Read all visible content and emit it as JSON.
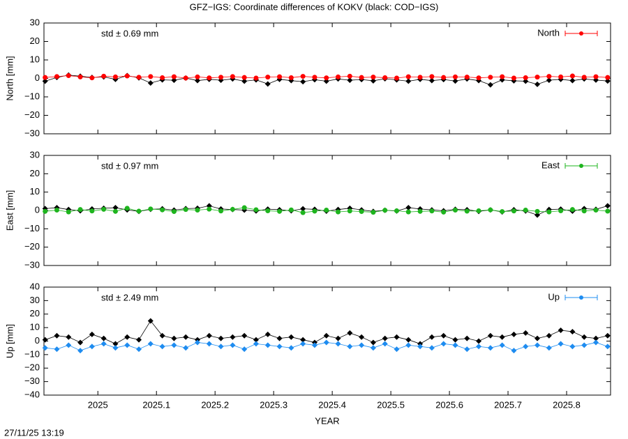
{
  "title": "GFZ−IGS: Coordinate differences of KOKV (black: COD−IGS)",
  "timestamp": "27/11/25 13:19",
  "chart_data": [
    {
      "type": "line",
      "ylabel": "North [mm]",
      "annotation": "std ± 0.69 mm",
      "annotation_color": "#ff0000",
      "xlim": [
        2024.908,
        2025.875
      ],
      "xticks": [
        2025,
        2025.1,
        2025.2,
        2025.3,
        2025.4,
        2025.5,
        2025.6,
        2025.7,
        2025.8
      ],
      "ylim": [
        -30,
        30
      ],
      "yticks": [
        {
          "value": -30,
          "label": "−30"
        },
        {
          "value": -20,
          "label": "−20"
        },
        {
          "value": -10,
          "label": "−10"
        },
        0,
        10,
        20,
        30
      ],
      "x": [
        2024.91,
        2024.93,
        2024.95,
        2024.97,
        2024.99,
        2025.01,
        2025.03,
        2025.05,
        2025.07,
        2025.09,
        2025.11,
        2025.13,
        2025.15,
        2025.17,
        2025.19,
        2025.21,
        2025.23,
        2025.25,
        2025.27,
        2025.29,
        2025.31,
        2025.33,
        2025.35,
        2025.37,
        2025.39,
        2025.41,
        2025.43,
        2025.45,
        2025.47,
        2025.49,
        2025.51,
        2025.53,
        2025.55,
        2025.57,
        2025.59,
        2025.61,
        2025.63,
        2025.65,
        2025.67,
        2025.69,
        2025.71,
        2025.73,
        2025.75,
        2025.77,
        2025.79,
        2025.81,
        2025.83,
        2025.85,
        2025.87
      ],
      "series": [
        {
          "color": "#000000",
          "marker": "diamond",
          "values": [
            -1.5,
            0.5,
            1.8,
            1.2,
            0.5,
            0.8,
            -0.5,
            1.5,
            0.3,
            -2.5,
            -0.8,
            -1,
            0.2,
            -1.2,
            -0.5,
            -1,
            -0.3,
            -1.5,
            -0.8,
            -3,
            -0.5,
            -1.2,
            -1.8,
            -0.7,
            -1.5,
            -0.3,
            -1,
            -0.6,
            -1.3,
            -0.2,
            -0.8,
            -1.5,
            -0.5,
            -1.2,
            -0.6,
            -1.4,
            -0.3,
            -1.2,
            -3.5,
            -0.8,
            -1.3,
            -1.5,
            -3.2,
            -1,
            -0.5,
            -1.2,
            -0.3,
            -0.9,
            -1.4
          ]
        },
        {
          "name": "North",
          "color": "#ff0000",
          "marker": "circle",
          "values": [
            0.5,
            1,
            1.5,
            0.8,
            0.3,
            1.2,
            0.8,
            1.3,
            0.6,
            1,
            0.4,
            0.9,
            0.2,
            0.8,
            0.3,
            0.6,
            1,
            0.5,
            0.2,
            0.7,
            0.9,
            0.4,
            1.1,
            0.6,
            0.3,
            0.8,
            1.2,
            0.5,
            0.7,
            0.4,
            0.2,
            0.9,
            0.6,
            1,
            0.5,
            0.8,
            0.7,
            0.3,
            0.6,
            0.9,
            0.2,
            0.4,
            0.7,
            1.1,
            0.8,
            1.3,
            0.6,
            0.9,
            0.5
          ]
        }
      ]
    },
    {
      "type": "line",
      "ylabel": "East [mm]",
      "annotation": "std ± 0.97 mm",
      "annotation_color": "#1eb41e",
      "xlim": [
        2024.908,
        2025.875
      ],
      "xticks": [
        2025,
        2025.1,
        2025.2,
        2025.3,
        2025.4,
        2025.5,
        2025.6,
        2025.7,
        2025.8
      ],
      "ylim": [
        -30,
        30
      ],
      "yticks": [
        {
          "value": -30,
          "label": "−30"
        },
        {
          "value": -20,
          "label": "−20"
        },
        {
          "value": -10,
          "label": "−10"
        },
        0,
        10,
        20,
        30
      ],
      "x": [
        2024.91,
        2024.93,
        2024.95,
        2024.97,
        2024.99,
        2025.01,
        2025.03,
        2025.05,
        2025.07,
        2025.09,
        2025.11,
        2025.13,
        2025.15,
        2025.17,
        2025.19,
        2025.21,
        2025.23,
        2025.25,
        2025.27,
        2025.29,
        2025.31,
        2025.33,
        2025.35,
        2025.37,
        2025.39,
        2025.41,
        2025.43,
        2025.45,
        2025.47,
        2025.49,
        2025.51,
        2025.53,
        2025.55,
        2025.57,
        2025.59,
        2025.61,
        2025.63,
        2025.65,
        2025.67,
        2025.69,
        2025.71,
        2025.73,
        2025.75,
        2025.77,
        2025.79,
        2025.81,
        2025.83,
        2025.85,
        2025.87
      ],
      "series": [
        {
          "color": "#000000",
          "marker": "diamond",
          "values": [
            1,
            1.5,
            0.5,
            -0.2,
            0.8,
            1.2,
            1.5,
            0.3,
            -0.5,
            0.6,
            0.9,
            0.2,
            1,
            1.2,
            2.5,
            0.8,
            0.5,
            0.2,
            -0.3,
            0.7,
            0.4,
            -0.2,
            0.9,
            0.6,
            -0.4,
            0.5,
            1.2,
            0.3,
            -0.5,
            0.1,
            -0.3,
            1.5,
            0.8,
            0.3,
            -0.2,
            0.6,
            0.4,
            -0.5,
            0.3,
            -0.8,
            0.4,
            -0.3,
            -2.5,
            0.5,
            0.7,
            -0.4,
            1,
            0.6,
            2.5
          ]
        },
        {
          "name": "East",
          "color": "#1eb41e",
          "marker": "circle",
          "values": [
            -0.5,
            0.2,
            -0.8,
            0.5,
            -0.3,
            0.6,
            -0.5,
            1.2,
            -0.4,
            0.8,
            0.3,
            -0.6,
            0.5,
            0.2,
            0.7,
            -0.3,
            0.6,
            1.5,
            0.4,
            -0.2,
            -0.5,
            0.3,
            -1.2,
            -0.4,
            0.2,
            -0.8,
            -0.3,
            -0.6,
            -1,
            0.1,
            -0.2,
            -0.8,
            -0.5,
            -0.3,
            -0.9,
            0.2,
            -0.4,
            -0.2,
            0.3,
            -0.6,
            -0.3,
            0.2,
            -0.5,
            -0.8,
            -0.2,
            0.5,
            -0.3,
            0.2,
            -0.4
          ]
        }
      ]
    },
    {
      "type": "line",
      "ylabel": "Up [mm]",
      "annotation": "std ± 2.49 mm",
      "annotation_color": "#1e8cf0",
      "xlabel": "YEAR",
      "xlim": [
        2024.908,
        2025.875
      ],
      "xticks": [
        2025,
        2025.1,
        2025.2,
        2025.3,
        2025.4,
        2025.5,
        2025.6,
        2025.7,
        2025.8
      ],
      "ylim": [
        -40,
        40
      ],
      "yticks": [
        {
          "value": -40,
          "label": "−40"
        },
        {
          "value": -30,
          "label": "−30"
        },
        {
          "value": -20,
          "label": "−20"
        },
        {
          "value": -10,
          "label": "−10"
        },
        0,
        10,
        20,
        30,
        40
      ],
      "x": [
        2024.91,
        2024.93,
        2024.95,
        2024.97,
        2024.99,
        2025.01,
        2025.03,
        2025.05,
        2025.07,
        2025.09,
        2025.11,
        2025.13,
        2025.15,
        2025.17,
        2025.19,
        2025.21,
        2025.23,
        2025.25,
        2025.27,
        2025.29,
        2025.31,
        2025.33,
        2025.35,
        2025.37,
        2025.39,
        2025.41,
        2025.43,
        2025.45,
        2025.47,
        2025.49,
        2025.51,
        2025.53,
        2025.55,
        2025.57,
        2025.59,
        2025.61,
        2025.63,
        2025.65,
        2025.67,
        2025.69,
        2025.71,
        2025.73,
        2025.75,
        2025.77,
        2025.79,
        2025.81,
        2025.83,
        2025.85,
        2025.87
      ],
      "series": [
        {
          "color": "#000000",
          "marker": "diamond",
          "values": [
            1,
            4,
            3,
            -1,
            5,
            2,
            -2,
            3,
            1,
            15,
            4,
            2,
            3,
            1,
            4,
            2,
            3,
            4,
            1,
            5,
            2,
            3,
            1,
            -1,
            4,
            2,
            6,
            3,
            -1,
            2,
            3,
            1,
            -2,
            3,
            4,
            1,
            2,
            0,
            4,
            3,
            5,
            6,
            2,
            4,
            8,
            7,
            3,
            2,
            4
          ]
        },
        {
          "name": "Up",
          "color": "#1e8cf0",
          "marker": "diamond",
          "values": [
            -5,
            -6,
            -3,
            -7,
            -4,
            -2,
            -5,
            -3,
            -6,
            -2,
            -4,
            -3,
            -5,
            -1,
            -2,
            -4,
            -3,
            -6,
            -2,
            -3,
            -4,
            -5,
            -2,
            -3,
            -1,
            -2,
            -4,
            -3,
            -5,
            -2,
            -6,
            -3,
            -4,
            -5,
            -2,
            -3,
            -6,
            -4,
            -5,
            -3,
            -7,
            -4,
            -3,
            -5,
            -2,
            -4,
            -3,
            -1,
            -4
          ]
        }
      ]
    }
  ]
}
